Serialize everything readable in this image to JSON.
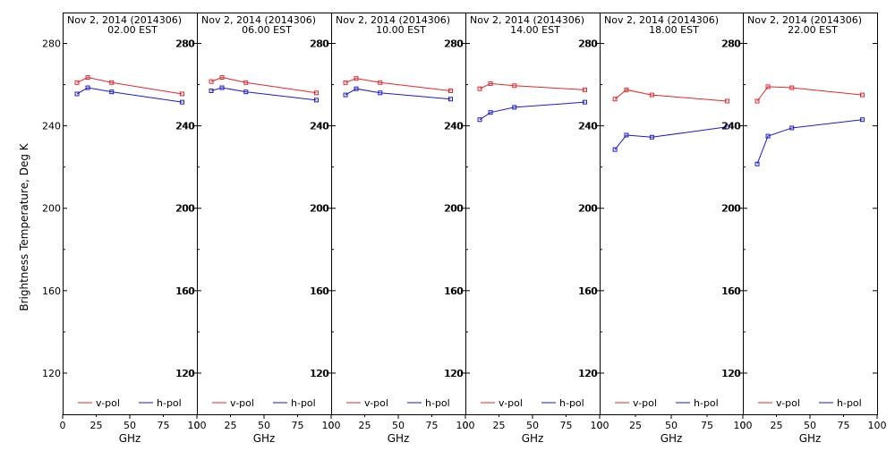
{
  "ylabel": "Brightness Temperature, Deg K",
  "colors": {
    "v_pol": "#e8262b",
    "h_pol": "#1a1ad6",
    "axis": "#000000",
    "background": "#ffffff"
  },
  "chart_data": {
    "type": "line",
    "xlabel": "GHz",
    "xlim": [
      0,
      100
    ],
    "ylim": [
      100,
      295
    ],
    "x_ticks": [
      "0",
      "50",
      "100"
    ],
    "x_ticks_minor": [
      "25",
      "75"
    ],
    "y_ticks": [
      120,
      160,
      200,
      240,
      280
    ],
    "grid": false,
    "legend": {
      "position": "bottom",
      "entries": [
        "v-pol",
        "h-pol"
      ]
    },
    "x": [
      10.7,
      18.7,
      36.5,
      89
    ],
    "panels": [
      {
        "title_line1": "Nov  2, 2014 (2014306)",
        "title_line2": "02.00 EST",
        "series": [
          {
            "name": "v-pol",
            "values": [
              261,
              263.5,
              261,
              255.5
            ]
          },
          {
            "name": "h-pol",
            "values": [
              255.5,
              258.5,
              256.5,
              251.5
            ]
          }
        ]
      },
      {
        "title_line1": "Nov  2, 2014 (2014306)",
        "title_line2": "06.00 EST",
        "series": [
          {
            "name": "v-pol",
            "values": [
              261.5,
              263.5,
              261,
              256
            ]
          },
          {
            "name": "h-pol",
            "values": [
              257,
              258.5,
              256.5,
              252.5
            ]
          }
        ]
      },
      {
        "title_line1": "Nov  2, 2014 (2014306)",
        "title_line2": "10.00 EST",
        "series": [
          {
            "name": "v-pol",
            "values": [
              261,
              263,
              261,
              257
            ]
          },
          {
            "name": "h-pol",
            "values": [
              255,
              258,
              256,
              253
            ]
          }
        ]
      },
      {
        "title_line1": "Nov  2, 2014 (2014306)",
        "title_line2": "14.00 EST",
        "series": [
          {
            "name": "v-pol",
            "values": [
              258,
              260.5,
              259.5,
              257.5
            ]
          },
          {
            "name": "h-pol",
            "values": [
              243,
              246.5,
              249,
              251.5
            ]
          }
        ]
      },
      {
        "title_line1": "Nov  2, 2014 (2014306)",
        "title_line2": "18.00 EST",
        "series": [
          {
            "name": "v-pol",
            "values": [
              253,
              257.5,
              255,
              252
            ]
          },
          {
            "name": "h-pol",
            "values": [
              228.5,
              235.5,
              234.5,
              239.5
            ]
          }
        ]
      },
      {
        "title_line1": "Nov  2, 2014 (2014306)",
        "title_line2": "22.00 EST",
        "series": [
          {
            "name": "v-pol",
            "values": [
              252,
              259,
              258.5,
              255
            ]
          },
          {
            "name": "h-pol",
            "values": [
              221.5,
              235,
              239,
              243
            ]
          }
        ]
      }
    ]
  }
}
